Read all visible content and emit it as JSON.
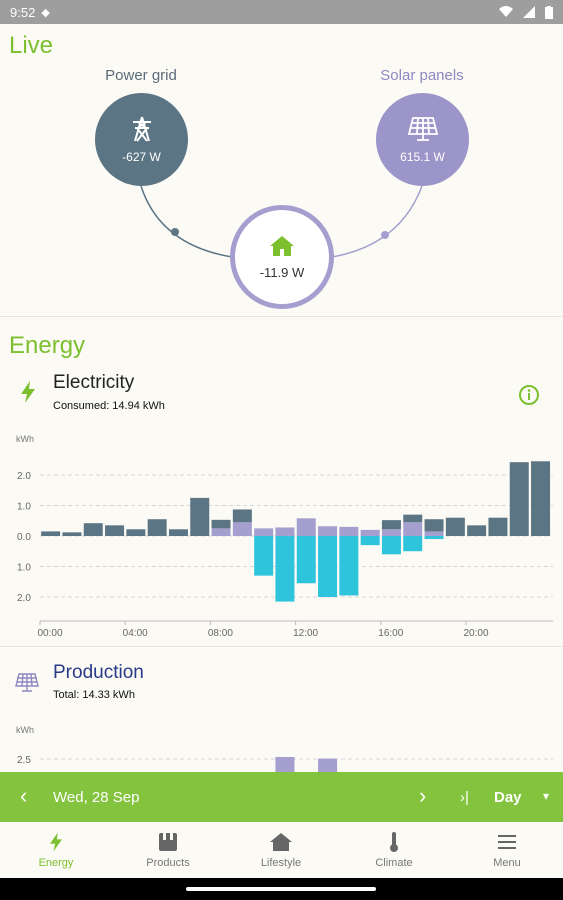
{
  "status_bar": {
    "time": "9:52"
  },
  "live": {
    "title": "Live",
    "grid": {
      "label": "Power grid",
      "value": "-627 W",
      "color": "#5c7585"
    },
    "solar": {
      "label": "Solar panels",
      "value": "615.1 W",
      "color": "#9c95c9"
    },
    "home": {
      "value": "-11.9 W",
      "ring_color": "#a59fd0",
      "icon_color": "#7cc02f"
    }
  },
  "energy": {
    "title": "Energy",
    "electricity": {
      "title": "Electricity",
      "subtitle": "Consumed: 14.94 kWh",
      "chart_data": {
        "type": "bar",
        "ylabel": "kWh",
        "y_ticks_positive": [
          "2.0",
          "1.0",
          "0.0"
        ],
        "y_ticks_negative": [
          "1.0",
          "2.0"
        ],
        "x_ticks": [
          "00:00",
          "04:00",
          "08:00",
          "12:00",
          "16:00",
          "20:00"
        ],
        "hours": [
          0,
          1,
          2,
          3,
          4,
          5,
          6,
          7,
          8,
          9,
          10,
          11,
          12,
          13,
          14,
          15,
          16,
          17,
          18,
          19,
          20,
          21,
          22,
          23
        ],
        "series": [
          {
            "name": "grid",
            "color": "#5c7585",
            "values": [
              0.15,
              0.12,
              0.42,
              0.35,
              0.22,
              0.55,
              0.22,
              1.25,
              0.28,
              0.42,
              0,
              0,
              0,
              0,
              0,
              0,
              0.3,
              0.25,
              0.4,
              0.6,
              0.35,
              0.6,
              2.42,
              2.45
            ]
          },
          {
            "name": "solar",
            "color": "#a59fd0",
            "values": [
              0,
              0,
              0,
              0,
              0,
              0,
              0,
              0,
              0.25,
              0.45,
              0.25,
              0.28,
              0.58,
              0.32,
              0.3,
              0.2,
              0.22,
              0.45,
              0.15,
              0,
              0,
              0,
              0,
              0
            ]
          },
          {
            "name": "export",
            "color": "#2ec5dc",
            "values": [
              0,
              0,
              0,
              0,
              0,
              0,
              0,
              0,
              0,
              0,
              -1.3,
              -2.15,
              -1.55,
              -2.0,
              -1.95,
              -0.3,
              -0.6,
              -0.5,
              -0.1,
              0,
              0,
              0,
              0,
              0
            ]
          }
        ]
      }
    },
    "production": {
      "title": "Production",
      "subtitle": "Total: 14.33 kWh",
      "chart_data": {
        "type": "bar",
        "ylabel": "kWh",
        "y_ticks": [
          "2.5"
        ],
        "visible_bars": [
          {
            "hour": 11,
            "value": 2.75,
            "color": "#a59fd0"
          },
          {
            "hour": 13,
            "value": 2.55,
            "color": "#a59fd0"
          }
        ]
      }
    }
  },
  "toolbar": {
    "prev": "‹",
    "date": "Wed, 28 Sep",
    "next": "›",
    "last": "›|",
    "period": "Day",
    "dropdown": "▾"
  },
  "nav": {
    "items": [
      {
        "label": "Energy",
        "active": true
      },
      {
        "label": "Products",
        "active": false
      },
      {
        "label": "Lifestyle",
        "active": false
      },
      {
        "label": "Climate",
        "active": false
      },
      {
        "label": "Menu",
        "active": false
      }
    ]
  },
  "colors": {
    "accent": "#7cc02f",
    "toolbar": "#84c33e",
    "grid": "#5c7585",
    "solar": "#a59fd0",
    "export": "#2ec5dc"
  }
}
